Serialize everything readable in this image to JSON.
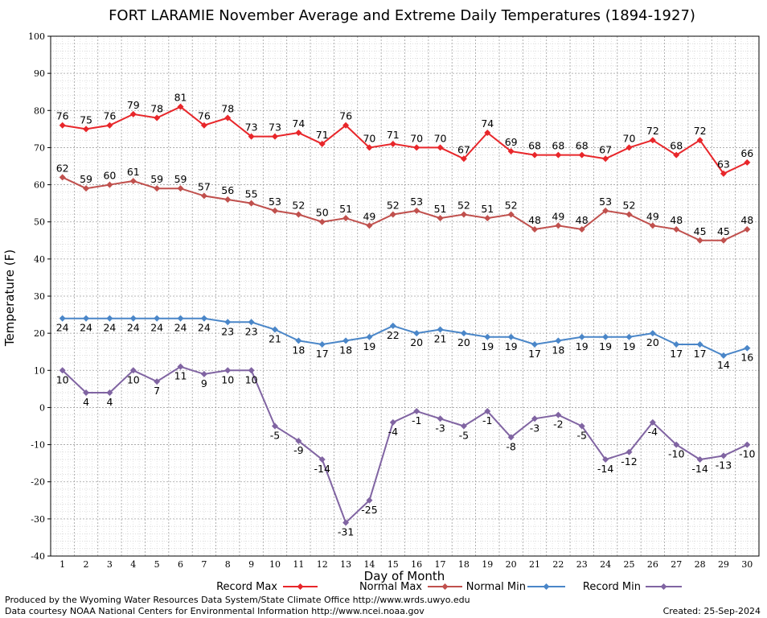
{
  "chart_data": {
    "type": "line",
    "title": "FORT LARAMIE November Average and Extreme Daily Temperatures (1894-1927)",
    "xlabel": "Day of Month",
    "ylabel": "Temperature (F)",
    "ylim": [
      -40,
      100
    ],
    "yticks": [
      -40,
      -30,
      -20,
      -10,
      0,
      10,
      20,
      30,
      40,
      50,
      60,
      70,
      80,
      90,
      100
    ],
    "x": [
      1,
      2,
      3,
      4,
      5,
      6,
      7,
      8,
      9,
      10,
      11,
      12,
      13,
      14,
      15,
      16,
      17,
      18,
      19,
      20,
      21,
      22,
      23,
      24,
      25,
      26,
      27,
      28,
      29,
      30
    ],
    "grid": true,
    "legend_position": "bottom",
    "series": [
      {
        "name": "Record Max",
        "color": "#e8262a",
        "label_position": "above",
        "values": [
          76,
          75,
          76,
          79,
          78,
          81,
          76,
          78,
          73,
          73,
          74,
          71,
          76,
          70,
          71,
          70,
          70,
          67,
          74,
          69,
          68,
          68,
          68,
          67,
          70,
          72,
          68,
          72,
          63,
          66
        ]
      },
      {
        "name": "Normal Max",
        "color": "#c0504d",
        "label_position": "above",
        "values": [
          62,
          59,
          60,
          61,
          59,
          59,
          57,
          56,
          55,
          53,
          52,
          50,
          51,
          49,
          52,
          53,
          51,
          52,
          51,
          52,
          48,
          49,
          48,
          53,
          52,
          49,
          48,
          45,
          45,
          48
        ]
      },
      {
        "name": "Normal Min",
        "color": "#4a86c8",
        "label_position": "below",
        "values": [
          24,
          24,
          24,
          24,
          24,
          24,
          24,
          23,
          23,
          21,
          18,
          17,
          18,
          19,
          22,
          20,
          21,
          20,
          19,
          19,
          17,
          18,
          19,
          19,
          19,
          20,
          17,
          17,
          14,
          16
        ]
      },
      {
        "name": "Record Min",
        "color": "#8064a2",
        "label_position": "below",
        "values": [
          10,
          4,
          4,
          10,
          7,
          11,
          9,
          10,
          10,
          -5,
          -9,
          -14,
          -31,
          -25,
          -4,
          -1,
          -3,
          -5,
          -1,
          -8,
          -3,
          -2,
          -5,
          -14,
          -12,
          -4,
          -10,
          -14,
          -13,
          -10
        ]
      }
    ]
  },
  "footer": {
    "produced_by": "Produced by the Wyoming Water Resources Data System/State Climate Office http://www.wrds.uwyo.edu",
    "courtesy": "Data courtesy NOAA National Centers for Environmental Information http://www.ncei.noaa.gov",
    "created": "Created: 25-Sep-2024"
  }
}
